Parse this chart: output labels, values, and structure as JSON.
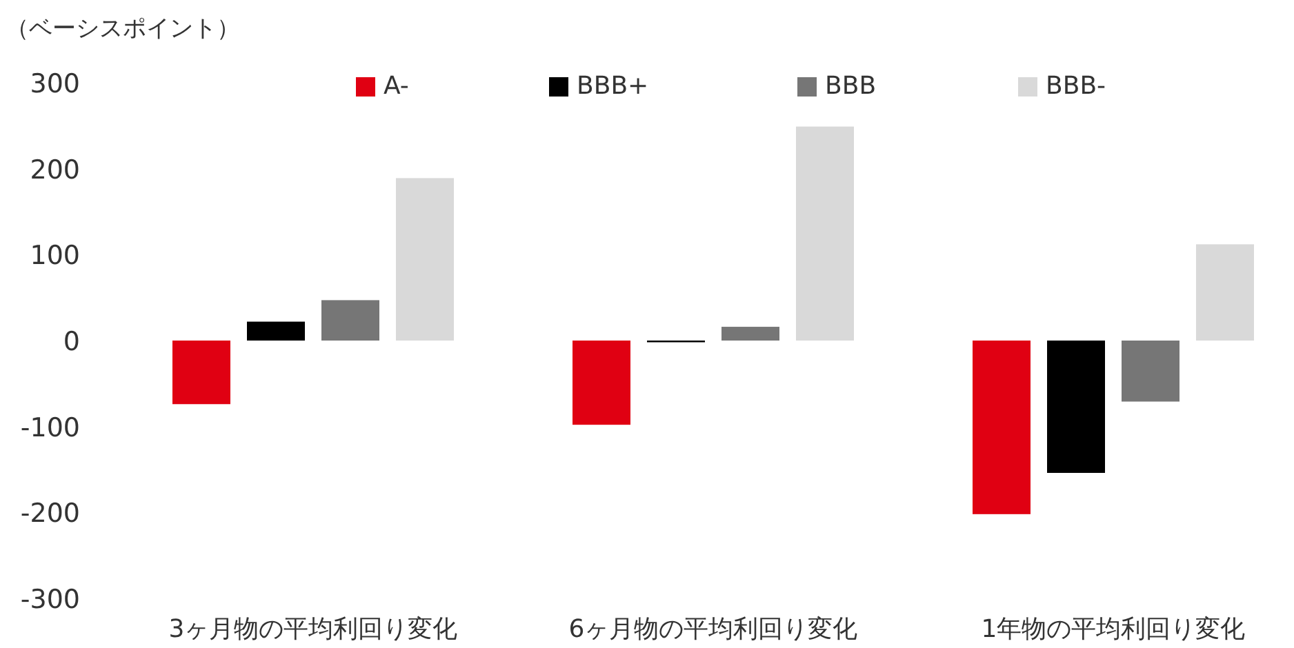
{
  "chart_data": {
    "type": "bar",
    "ylabel": "（ベーシスポイント）",
    "categories": [
      "3ヶ月物の平均利回り変化",
      "6ヶ月物の平均利回り変化",
      "1年物の平均利回り変化"
    ],
    "series": [
      {
        "name": "A-",
        "color": "#e00012",
        "values": [
          -74,
          -98,
          -202
        ]
      },
      {
        "name": "BBB+",
        "color": "#000000",
        "values": [
          22,
          -2,
          -154
        ]
      },
      {
        "name": "BBB",
        "color": "#767676",
        "values": [
          47,
          16,
          -71
        ]
      },
      {
        "name": "BBB-",
        "color": "#d9d9d9",
        "values": [
          189,
          249,
          112
        ]
      }
    ],
    "ylim": [
      -300,
      300
    ],
    "yticks": [
      -300,
      -200,
      -100,
      0,
      100,
      200,
      300
    ],
    "grid": false,
    "legend": "top"
  }
}
